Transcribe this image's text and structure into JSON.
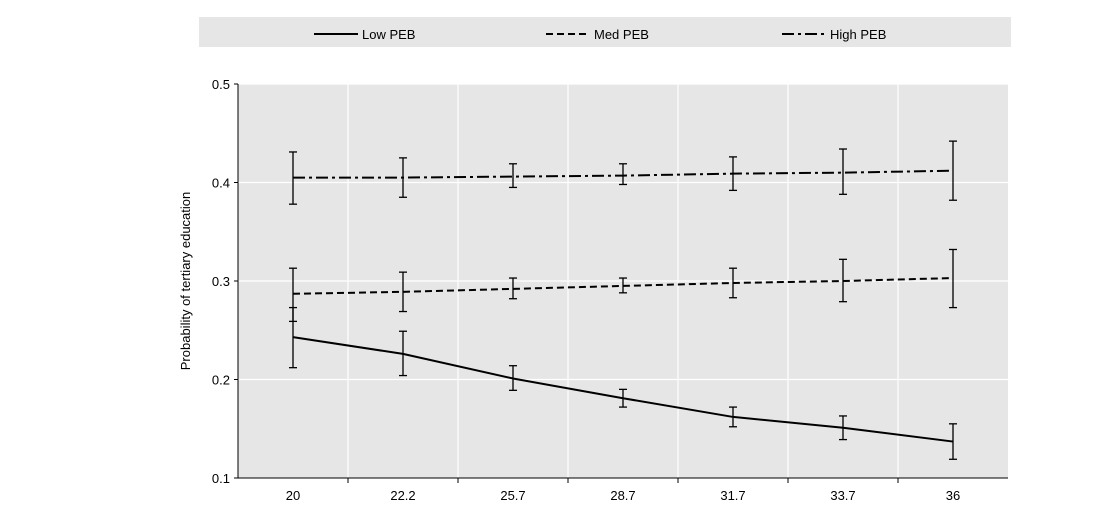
{
  "chart_data": {
    "type": "line",
    "title": "",
    "xlabel": "",
    "ylabel": "Probability of tertiary education",
    "categories": [
      "20",
      "22.2",
      "25.7",
      "28.7",
      "31.7",
      "33.7",
      "36"
    ],
    "ylim": [
      0.1,
      0.5
    ],
    "yticks": [
      "0.1",
      "0.2",
      "0.3",
      "0.4",
      "0.5"
    ],
    "grid": true,
    "legend_position": "top",
    "background": "#e6e6e6",
    "series": [
      {
        "name": "Low PEB",
        "style": "solid",
        "values": [
          0.243,
          0.226,
          0.201,
          0.181,
          0.162,
          0.151,
          0.137
        ],
        "ci_low": [
          0.212,
          0.204,
          0.189,
          0.172,
          0.152,
          0.139,
          0.119
        ],
        "ci_high": [
          0.273,
          0.249,
          0.214,
          0.19,
          0.172,
          0.163,
          0.155
        ]
      },
      {
        "name": "Med PEB",
        "style": "dashed",
        "values": [
          0.287,
          0.289,
          0.292,
          0.295,
          0.298,
          0.3,
          0.303
        ],
        "ci_low": [
          0.259,
          0.269,
          0.282,
          0.288,
          0.283,
          0.279,
          0.273
        ],
        "ci_high": [
          0.313,
          0.309,
          0.303,
          0.303,
          0.313,
          0.322,
          0.332
        ]
      },
      {
        "name": "High PEB",
        "style": "dashdot",
        "values": [
          0.405,
          0.405,
          0.406,
          0.407,
          0.409,
          0.41,
          0.412
        ],
        "ci_low": [
          0.378,
          0.385,
          0.395,
          0.398,
          0.392,
          0.388,
          0.382
        ],
        "ci_high": [
          0.431,
          0.425,
          0.419,
          0.419,
          0.426,
          0.434,
          0.442
        ]
      }
    ]
  }
}
